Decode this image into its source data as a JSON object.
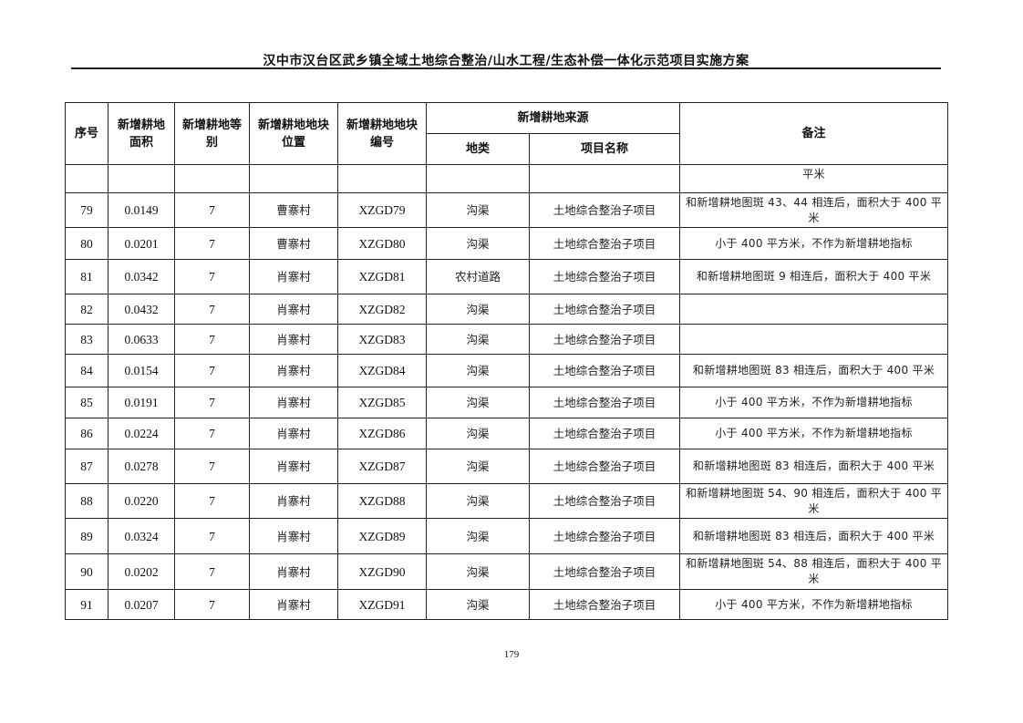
{
  "header": {
    "title": "汉中市汉台区武乡镇全域土地综合整治/山水工程/生态补偿一体化示范项目实施方案"
  },
  "table": {
    "columns": {
      "seq": "序号",
      "area": "新增耕地面积",
      "grade": "新增耕地等别",
      "location": "新增耕地地块位置",
      "code": "新增耕地地块编号",
      "source": "新增耕地来源",
      "land_type": "地类",
      "project": "项目名称",
      "remark": "备注"
    },
    "continuation_row": {
      "remark": "平米"
    },
    "rows": [
      {
        "seq": "79",
        "area": "0.0149",
        "grade": "7",
        "location": "曹寨村",
        "code": "XZGD79",
        "land_type": "沟渠",
        "project": "土地综合整治子项目",
        "remark": "和新增耕地图斑 43、44 相连后，面积大于 400 平米"
      },
      {
        "seq": "80",
        "area": "0.0201",
        "grade": "7",
        "location": "曹寨村",
        "code": "XZGD80",
        "land_type": "沟渠",
        "project": "土地综合整治子项目",
        "remark": "小于 400 平方米，不作为新增耕地指标"
      },
      {
        "seq": "81",
        "area": "0.0342",
        "grade": "7",
        "location": "肖寨村",
        "code": "XZGD81",
        "land_type": "农村道路",
        "project": "土地综合整治子项目",
        "remark": "和新增耕地图斑 9 相连后，面积大于 400 平米"
      },
      {
        "seq": "82",
        "area": "0.0432",
        "grade": "7",
        "location": "肖寨村",
        "code": "XZGD82",
        "land_type": "沟渠",
        "project": "土地综合整治子项目",
        "remark": ""
      },
      {
        "seq": "83",
        "area": "0.0633",
        "grade": "7",
        "location": "肖寨村",
        "code": "XZGD83",
        "land_type": "沟渠",
        "project": "土地综合整治子项目",
        "remark": ""
      },
      {
        "seq": "84",
        "area": "0.0154",
        "grade": "7",
        "location": "肖寨村",
        "code": "XZGD84",
        "land_type": "沟渠",
        "project": "土地综合整治子项目",
        "remark": "和新增耕地图斑 83 相连后，面积大于 400 平米"
      },
      {
        "seq": "85",
        "area": "0.0191",
        "grade": "7",
        "location": "肖寨村",
        "code": "XZGD85",
        "land_type": "沟渠",
        "project": "土地综合整治子项目",
        "remark": "小于 400 平方米，不作为新增耕地指标"
      },
      {
        "seq": "86",
        "area": "0.0224",
        "grade": "7",
        "location": "肖寨村",
        "code": "XZGD86",
        "land_type": "沟渠",
        "project": "土地综合整治子项目",
        "remark": "小于 400 平方米，不作为新增耕地指标"
      },
      {
        "seq": "87",
        "area": "0.0278",
        "grade": "7",
        "location": "肖寨村",
        "code": "XZGD87",
        "land_type": "沟渠",
        "project": "土地综合整治子项目",
        "remark": "和新增耕地图斑 83 相连后，面积大于 400 平米"
      },
      {
        "seq": "88",
        "area": "0.0220",
        "grade": "7",
        "location": "肖寨村",
        "code": "XZGD88",
        "land_type": "沟渠",
        "project": "土地综合整治子项目",
        "remark": "和新增耕地图斑 54、90 相连后，面积大于 400 平米"
      },
      {
        "seq": "89",
        "area": "0.0324",
        "grade": "7",
        "location": "肖寨村",
        "code": "XZGD89",
        "land_type": "沟渠",
        "project": "土地综合整治子项目",
        "remark": "和新增耕地图斑 83 相连后，面积大于 400 平米"
      },
      {
        "seq": "90",
        "area": "0.0202",
        "grade": "7",
        "location": "肖寨村",
        "code": "XZGD90",
        "land_type": "沟渠",
        "project": "土地综合整治子项目",
        "remark": "和新增耕地图斑 54、88 相连后，面积大于 400 平米"
      },
      {
        "seq": "91",
        "area": "0.0207",
        "grade": "7",
        "location": "肖寨村",
        "code": "XZGD91",
        "land_type": "沟渠",
        "project": "土地综合整治子项目",
        "remark": "小于 400 平方米，不作为新增耕地指标"
      }
    ]
  },
  "footer": {
    "page_number": "179"
  }
}
